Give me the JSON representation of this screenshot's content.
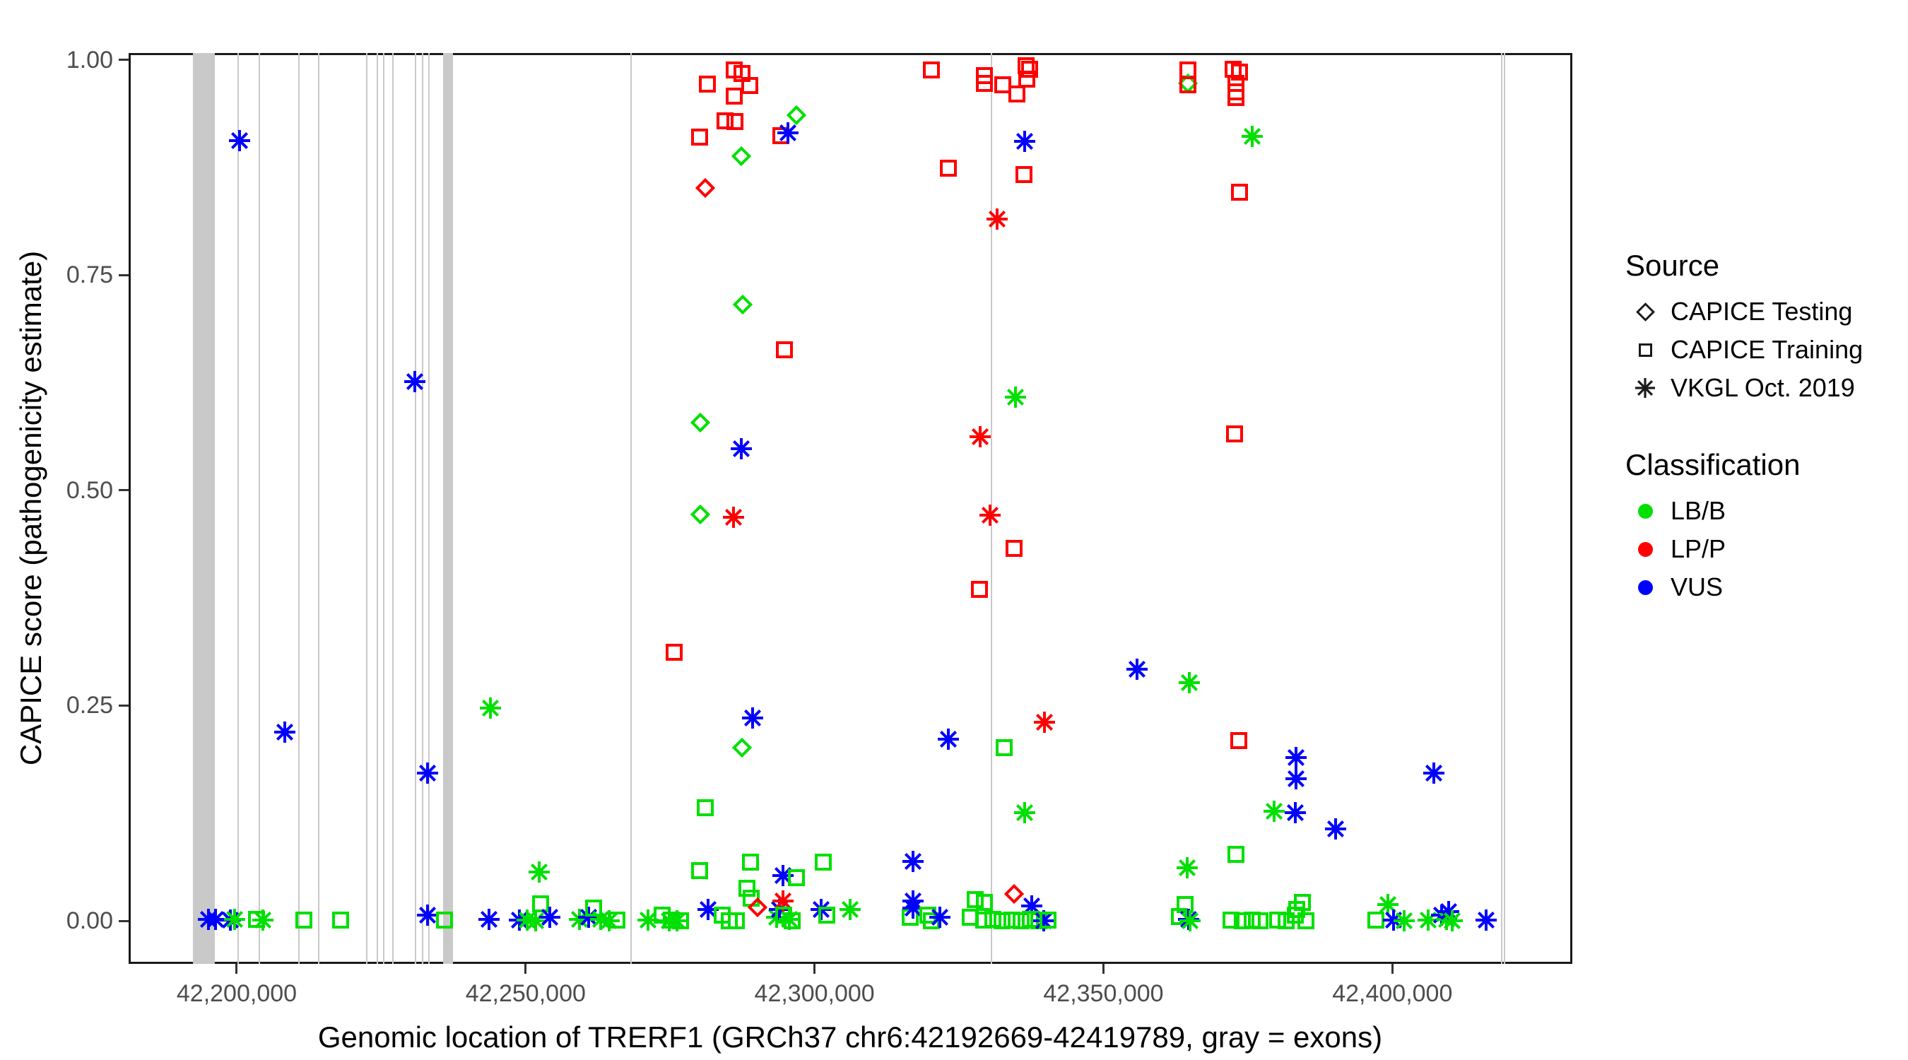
{
  "chart_data": {
    "type": "scatter",
    "title": "",
    "xlabel": "Genomic location of TRERF1 (GRCh37 chr6:42192669-42419789, gray = exons)",
    "ylabel": "CAPICE score (pathogenicity estimate)",
    "x_domain_bp": [
      42181290,
      42431150
    ],
    "y_domain": [
      -0.05,
      1.008
    ],
    "x_ticks": [
      {
        "value": 42200000,
        "label": "42,200,000"
      },
      {
        "value": 42250000,
        "label": "42,250,000"
      },
      {
        "value": 42300000,
        "label": "42,300,000"
      },
      {
        "value": 42350000,
        "label": "42,350,000"
      },
      {
        "value": 42400000,
        "label": "42,400,000"
      }
    ],
    "y_ticks": [
      {
        "value": 0.0,
        "label": "0.00"
      },
      {
        "value": 0.25,
        "label": "0.25"
      },
      {
        "value": 0.5,
        "label": "0.50"
      },
      {
        "value": 0.75,
        "label": "0.75"
      },
      {
        "value": 1.0,
        "label": "1.00"
      }
    ],
    "grid": "off",
    "exon_note": "gray = exons",
    "exon_bands_bp": [
      [
        42192400,
        42196200
      ],
      [
        42235700,
        42237400
      ]
    ],
    "exon_lines_bp": [
      42200200,
      42203900,
      42210800,
      42214200,
      42222500,
      42224300,
      42225400,
      42227000,
      42230900,
      42232200,
      42233300,
      42268200,
      42330600,
      42418900,
      42419400
    ],
    "sources": {
      "testing": {
        "label": "CAPICE Testing",
        "shape": "diamond"
      },
      "training": {
        "label": "CAPICE Training",
        "shape": "square"
      },
      "vkgl": {
        "label": "VKGL Oct. 2019",
        "shape": "asterisk"
      }
    },
    "classifications": {
      "LB/B": {
        "color": "#00e000"
      },
      "LP/P": {
        "color": "#ff0000"
      },
      "VUS": {
        "color": "#0000ff"
      }
    },
    "points_format": [
      "position_bp",
      "capice_score",
      "source",
      "classification"
    ],
    "points": [
      [
        42195100,
        0.002,
        "vkgl",
        "VUS"
      ],
      [
        42196300,
        0.002,
        "vkgl",
        "VUS"
      ],
      [
        42198900,
        0.001,
        "vkgl",
        "VUS"
      ],
      [
        42199600,
        0.002,
        "vkgl",
        "LB/B"
      ],
      [
        42200500,
        0.906,
        "vkgl",
        "VUS"
      ],
      [
        42203400,
        0.002,
        "training",
        "LB/B"
      ],
      [
        42204500,
        0.001,
        "vkgl",
        "LB/B"
      ],
      [
        42208300,
        0.219,
        "vkgl",
        "VUS"
      ],
      [
        42211600,
        0.001,
        "training",
        "LB/B"
      ],
      [
        42218000,
        0.001,
        "training",
        "LB/B"
      ],
      [
        42230800,
        0.626,
        "vkgl",
        "VUS"
      ],
      [
        42233000,
        0.172,
        "vkgl",
        "VUS"
      ],
      [
        42233000,
        0.007,
        "vkgl",
        "VUS"
      ],
      [
        42235900,
        0.001,
        "training",
        "LB/B"
      ],
      [
        42243900,
        0.247,
        "vkgl",
        "LB/B"
      ],
      [
        42243700,
        0.002,
        "vkgl",
        "VUS"
      ],
      [
        42248900,
        0.001,
        "vkgl",
        "VUS"
      ],
      [
        42250300,
        0.001,
        "vkgl",
        "LB/B"
      ],
      [
        42251700,
        0.0,
        "vkgl",
        "LB/B"
      ],
      [
        42252300,
        0.057,
        "vkgl",
        "LB/B"
      ],
      [
        42252600,
        0.02,
        "training",
        "LB/B"
      ],
      [
        42254200,
        0.004,
        "vkgl",
        "VUS"
      ],
      [
        42259300,
        0.002,
        "vkgl",
        "LB/B"
      ],
      [
        42260900,
        0.004,
        "vkgl",
        "VUS"
      ],
      [
        42261800,
        0.015,
        "training",
        "LB/B"
      ],
      [
        42263000,
        0.002,
        "vkgl",
        "LB/B"
      ],
      [
        42264400,
        0.0,
        "vkgl",
        "LB/B"
      ],
      [
        42265800,
        0.001,
        "training",
        "LB/B"
      ],
      [
        42271200,
        0.001,
        "vkgl",
        "LB/B"
      ],
      [
        42273600,
        0.007,
        "training",
        "LB/B"
      ],
      [
        42274800,
        0.0,
        "vkgl",
        "LB/B"
      ],
      [
        42275200,
        0.001,
        "training",
        "LB/B"
      ],
      [
        42275700,
        0.312,
        "training",
        "LP/P"
      ],
      [
        42276200,
        0.0,
        "vkgl",
        "LB/B"
      ],
      [
        42276800,
        0.0,
        "training",
        "LB/B"
      ],
      [
        42280100,
        0.91,
        "training",
        "LP/P"
      ],
      [
        42280200,
        0.579,
        "testing",
        "LB/B"
      ],
      [
        42280200,
        0.472,
        "testing",
        "LB/B"
      ],
      [
        42280100,
        0.058,
        "training",
        "LB/B"
      ],
      [
        42281100,
        0.851,
        "testing",
        "LP/P"
      ],
      [
        42281100,
        0.131,
        "training",
        "LB/B"
      ],
      [
        42281400,
        0.972,
        "training",
        "LP/P"
      ],
      [
        42281600,
        0.013,
        "vkgl",
        "VUS"
      ],
      [
        42284000,
        0.007,
        "training",
        "LB/B"
      ],
      [
        42284500,
        0.929,
        "training",
        "LP/P"
      ],
      [
        42285300,
        0.0,
        "training",
        "LB/B"
      ],
      [
        42286100,
        0.988,
        "training",
        "LP/P"
      ],
      [
        42286100,
        0.958,
        "training",
        "LP/P"
      ],
      [
        42286200,
        0.928,
        "training",
        "LP/P"
      ],
      [
        42286000,
        0.469,
        "vkgl",
        "LP/P"
      ],
      [
        42286500,
        0.0,
        "training",
        "LB/B"
      ],
      [
        42287400,
        0.984,
        "training",
        "LP/P"
      ],
      [
        42287300,
        0.888,
        "testing",
        "LB/B"
      ],
      [
        42287600,
        0.716,
        "testing",
        "LB/B"
      ],
      [
        42287300,
        0.548,
        "vkgl",
        "VUS"
      ],
      [
        42287400,
        0.201,
        "testing",
        "LB/B"
      ],
      [
        42288800,
        0.97,
        "training",
        "LP/P"
      ],
      [
        42288300,
        0.038,
        "training",
        "LB/B"
      ],
      [
        42289000,
        0.026,
        "training",
        "LB/B"
      ],
      [
        42288900,
        0.068,
        "training",
        "LB/B"
      ],
      [
        42289300,
        0.236,
        "vkgl",
        "VUS"
      ],
      [
        42290100,
        0.016,
        "testing",
        "LP/P"
      ],
      [
        42293400,
        0.004,
        "vkgl",
        "LB/B"
      ],
      [
        42293900,
        0.013,
        "vkgl",
        "VUS"
      ],
      [
        42294200,
        0.912,
        "training",
        "LP/P"
      ],
      [
        42294800,
        0.663,
        "training",
        "LP/P"
      ],
      [
        42294500,
        0.023,
        "vkgl",
        "LP/P"
      ],
      [
        42294600,
        0.053,
        "vkgl",
        "VUS"
      ],
      [
        42294700,
        0.007,
        "training",
        "LB/B"
      ],
      [
        42295400,
        0.915,
        "vkgl",
        "VUS"
      ],
      [
        42295700,
        0.002,
        "vkgl",
        "LB/B"
      ],
      [
        42296100,
        0.0,
        "training",
        "LB/B"
      ],
      [
        42296900,
        0.936,
        "testing",
        "LB/B"
      ],
      [
        42296900,
        0.05,
        "training",
        "LB/B"
      ],
      [
        42301500,
        0.068,
        "training",
        "LB/B"
      ],
      [
        42301200,
        0.013,
        "vkgl",
        "VUS"
      ],
      [
        42302100,
        0.007,
        "training",
        "LB/B"
      ],
      [
        42306100,
        0.013,
        "vkgl",
        "LB/B"
      ],
      [
        42316600,
        0.004,
        "training",
        "LB/B"
      ],
      [
        42317000,
        0.069,
        "vkgl",
        "VUS"
      ],
      [
        42317000,
        0.023,
        "vkgl",
        "VUS"
      ],
      [
        42317100,
        0.015,
        "vkgl",
        "VUS"
      ],
      [
        42319600,
        0.007,
        "training",
        "LB/B"
      ],
      [
        42320200,
        0.988,
        "training",
        "LP/P"
      ],
      [
        42320200,
        0.0,
        "training",
        "LB/B"
      ],
      [
        42321700,
        0.004,
        "vkgl",
        "VUS"
      ],
      [
        42323200,
        0.874,
        "training",
        "LP/P"
      ],
      [
        42323200,
        0.211,
        "vkgl",
        "VUS"
      ],
      [
        42326900,
        0.004,
        "training",
        "LB/B"
      ],
      [
        42327800,
        0.025,
        "training",
        "LB/B"
      ],
      [
        42328500,
        0.385,
        "training",
        "LP/P"
      ],
      [
        42328700,
        0.562,
        "vkgl",
        "LP/P"
      ],
      [
        42329400,
        0.982,
        "training",
        "LP/P"
      ],
      [
        42329400,
        0.973,
        "training",
        "LP/P"
      ],
      [
        42329400,
        0.021,
        "training",
        "LB/B"
      ],
      [
        42329300,
        0.001,
        "training",
        "LB/B"
      ],
      [
        42330400,
        0.471,
        "vkgl",
        "LP/P"
      ],
      [
        42330900,
        0.002,
        "training",
        "LB/B"
      ],
      [
        42331600,
        0.815,
        "vkgl",
        "LP/P"
      ],
      [
        42332600,
        0.971,
        "training",
        "LP/P"
      ],
      [
        42332800,
        0.201,
        "training",
        "LB/B"
      ],
      [
        42332400,
        0.0,
        "training",
        "LB/B"
      ],
      [
        42334800,
        0.608,
        "vkgl",
        "LB/B"
      ],
      [
        42334500,
        0.433,
        "training",
        "LP/P"
      ],
      [
        42334500,
        0.031,
        "testing",
        "LP/P"
      ],
      [
        42334200,
        0.001,
        "training",
        "LB/B"
      ],
      [
        42335000,
        0.96,
        "training",
        "LP/P"
      ],
      [
        42335800,
        0.0,
        "training",
        "LB/B"
      ],
      [
        42336600,
        0.993,
        "training",
        "LP/P"
      ],
      [
        42336400,
        0.905,
        "vkgl",
        "VUS"
      ],
      [
        42336200,
        0.867,
        "training",
        "LP/P"
      ],
      [
        42336400,
        0.126,
        "vkgl",
        "LB/B"
      ],
      [
        42336700,
        0.978,
        "training",
        "LP/P"
      ],
      [
        42337200,
        0.989,
        "training",
        "LP/P"
      ],
      [
        42337600,
        0.017,
        "vkgl",
        "VUS"
      ],
      [
        42337400,
        0.002,
        "training",
        "LB/B"
      ],
      [
        42338800,
        0.0,
        "training",
        "LB/B"
      ],
      [
        42339800,
        0.231,
        "vkgl",
        "LP/P"
      ],
      [
        42339700,
        0.0,
        "vkgl",
        "VUS"
      ],
      [
        42340400,
        0.001,
        "training",
        "LB/B"
      ],
      [
        42355800,
        0.292,
        "vkgl",
        "VUS"
      ],
      [
        42363200,
        0.005,
        "training",
        "LB/B"
      ],
      [
        42364100,
        0.019,
        "training",
        "LB/B"
      ],
      [
        42364500,
        0.062,
        "vkgl",
        "LB/B"
      ],
      [
        42364600,
        0.988,
        "training",
        "LP/P"
      ],
      [
        42364600,
        0.973,
        "testing",
        "LB/B"
      ],
      [
        42364600,
        0.971,
        "training",
        "LP/P"
      ],
      [
        42364700,
        0.002,
        "vkgl",
        "VUS"
      ],
      [
        42364900,
        0.277,
        "vkgl",
        "LB/B"
      ],
      [
        42365000,
        0.0,
        "vkgl",
        "LB/B"
      ],
      [
        42372400,
        0.989,
        "training",
        "LP/P"
      ],
      [
        42372900,
        0.973,
        "training",
        "LP/P"
      ],
      [
        42372900,
        0.963,
        "training",
        "LP/P"
      ],
      [
        42372900,
        0.956,
        "training",
        "LP/P"
      ],
      [
        42372700,
        0.566,
        "training",
        "LP/P"
      ],
      [
        42372900,
        0.077,
        "training",
        "LB/B"
      ],
      [
        42372100,
        0.001,
        "training",
        "LB/B"
      ],
      [
        42373600,
        0.986,
        "training",
        "LP/P"
      ],
      [
        42373500,
        0.846,
        "training",
        "LP/P"
      ],
      [
        42373400,
        0.209,
        "training",
        "LP/P"
      ],
      [
        42374000,
        0.0,
        "training",
        "LB/B"
      ],
      [
        42375700,
        0.911,
        "vkgl",
        "LB/B"
      ],
      [
        42375700,
        0.001,
        "training",
        "LB/B"
      ],
      [
        42377100,
        0.0,
        "training",
        "LB/B"
      ],
      [
        42379500,
        0.127,
        "vkgl",
        "LB/B"
      ],
      [
        42380100,
        0.001,
        "training",
        "LB/B"
      ],
      [
        42381600,
        0.0,
        "training",
        "LB/B"
      ],
      [
        42383300,
        0.19,
        "vkgl",
        "VUS"
      ],
      [
        42383300,
        0.165,
        "vkgl",
        "VUS"
      ],
      [
        42383200,
        0.126,
        "vkgl",
        "VUS"
      ],
      [
        42383200,
        0.007,
        "training",
        "LB/B"
      ],
      [
        42383500,
        0.013,
        "training",
        "LB/B"
      ],
      [
        42384400,
        0.021,
        "training",
        "LB/B"
      ],
      [
        42385000,
        0.0,
        "training",
        "LB/B"
      ],
      [
        42390200,
        0.107,
        "vkgl",
        "VUS"
      ],
      [
        42397100,
        0.001,
        "training",
        "LB/B"
      ],
      [
        42399200,
        0.019,
        "vkgl",
        "LB/B"
      ],
      [
        42400200,
        0.001,
        "vkgl",
        "VUS"
      ],
      [
        42402100,
        0.0,
        "vkgl",
        "LB/B"
      ],
      [
        42406200,
        0.001,
        "vkgl",
        "LB/B"
      ],
      [
        42407200,
        0.172,
        "vkgl",
        "VUS"
      ],
      [
        42408500,
        0.007,
        "vkgl",
        "VUS"
      ],
      [
        42409400,
        0.002,
        "vkgl",
        "LB/B"
      ],
      [
        42409800,
        0.011,
        "vkgl",
        "VUS"
      ],
      [
        42410400,
        0.0,
        "vkgl",
        "LB/B"
      ],
      [
        42416200,
        0.001,
        "vkgl",
        "VUS"
      ]
    ]
  },
  "legend": {
    "source": {
      "title": "Source",
      "items": [
        {
          "label": "CAPICE Testing",
          "shape": "diamond"
        },
        {
          "label": "CAPICE Training",
          "shape": "square"
        },
        {
          "label": "VKGL Oct. 2019",
          "shape": "asterisk"
        }
      ]
    },
    "classification": {
      "title": "Classification",
      "items": [
        {
          "label": "LB/B",
          "color": "#00e000"
        },
        {
          "label": "LP/P",
          "color": "#ff0000"
        },
        {
          "label": "VUS",
          "color": "#0000ff"
        }
      ]
    }
  }
}
